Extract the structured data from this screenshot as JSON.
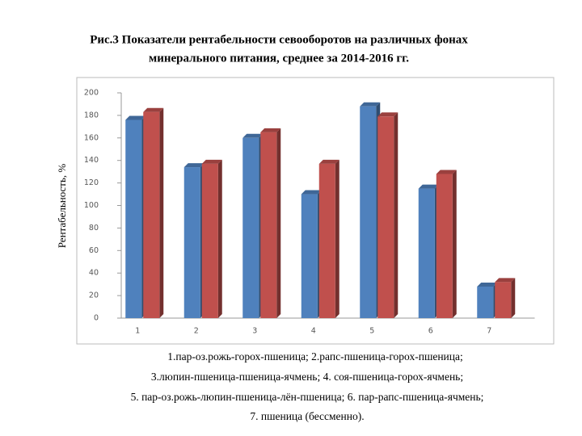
{
  "chart_data": {
    "type": "bar",
    "title": [
      "Рис.3 Показатели рентабельности севооборотов на различных фонах",
      "минерального питания, среднее за 2014-2016 гг."
    ],
    "y_label": "Рентабельность, %",
    "categories": [
      "1",
      "2",
      "3",
      "4",
      "5",
      "6",
      "7"
    ],
    "series": [
      {
        "color": "#4f81bd",
        "values": [
          176,
          134,
          160,
          110,
          188,
          115,
          28
        ]
      },
      {
        "color": "#c0504d",
        "values": [
          183,
          137,
          165,
          137,
          179,
          128,
          32
        ]
      }
    ],
    "ylim": [
      0,
      200
    ],
    "yticks": [
      0,
      20,
      40,
      60,
      80,
      100,
      120,
      140,
      160,
      180,
      200
    ],
    "grid": false,
    "caption": [
      "1.пар-оз.рожь-горох-пшеница;  2.рапс-пшеница-горох-пшеница;",
      "3.люпин-пшеница-пшеница-ячмень;  4. соя-пшеница-горох-ячмень;",
      "5. пар-оз.рожь-люпин-пшеница-лён-пшеница;  6. пар-рапс-пшеница-ячмень;",
      "7. пшеница (бессменно)."
    ]
  }
}
